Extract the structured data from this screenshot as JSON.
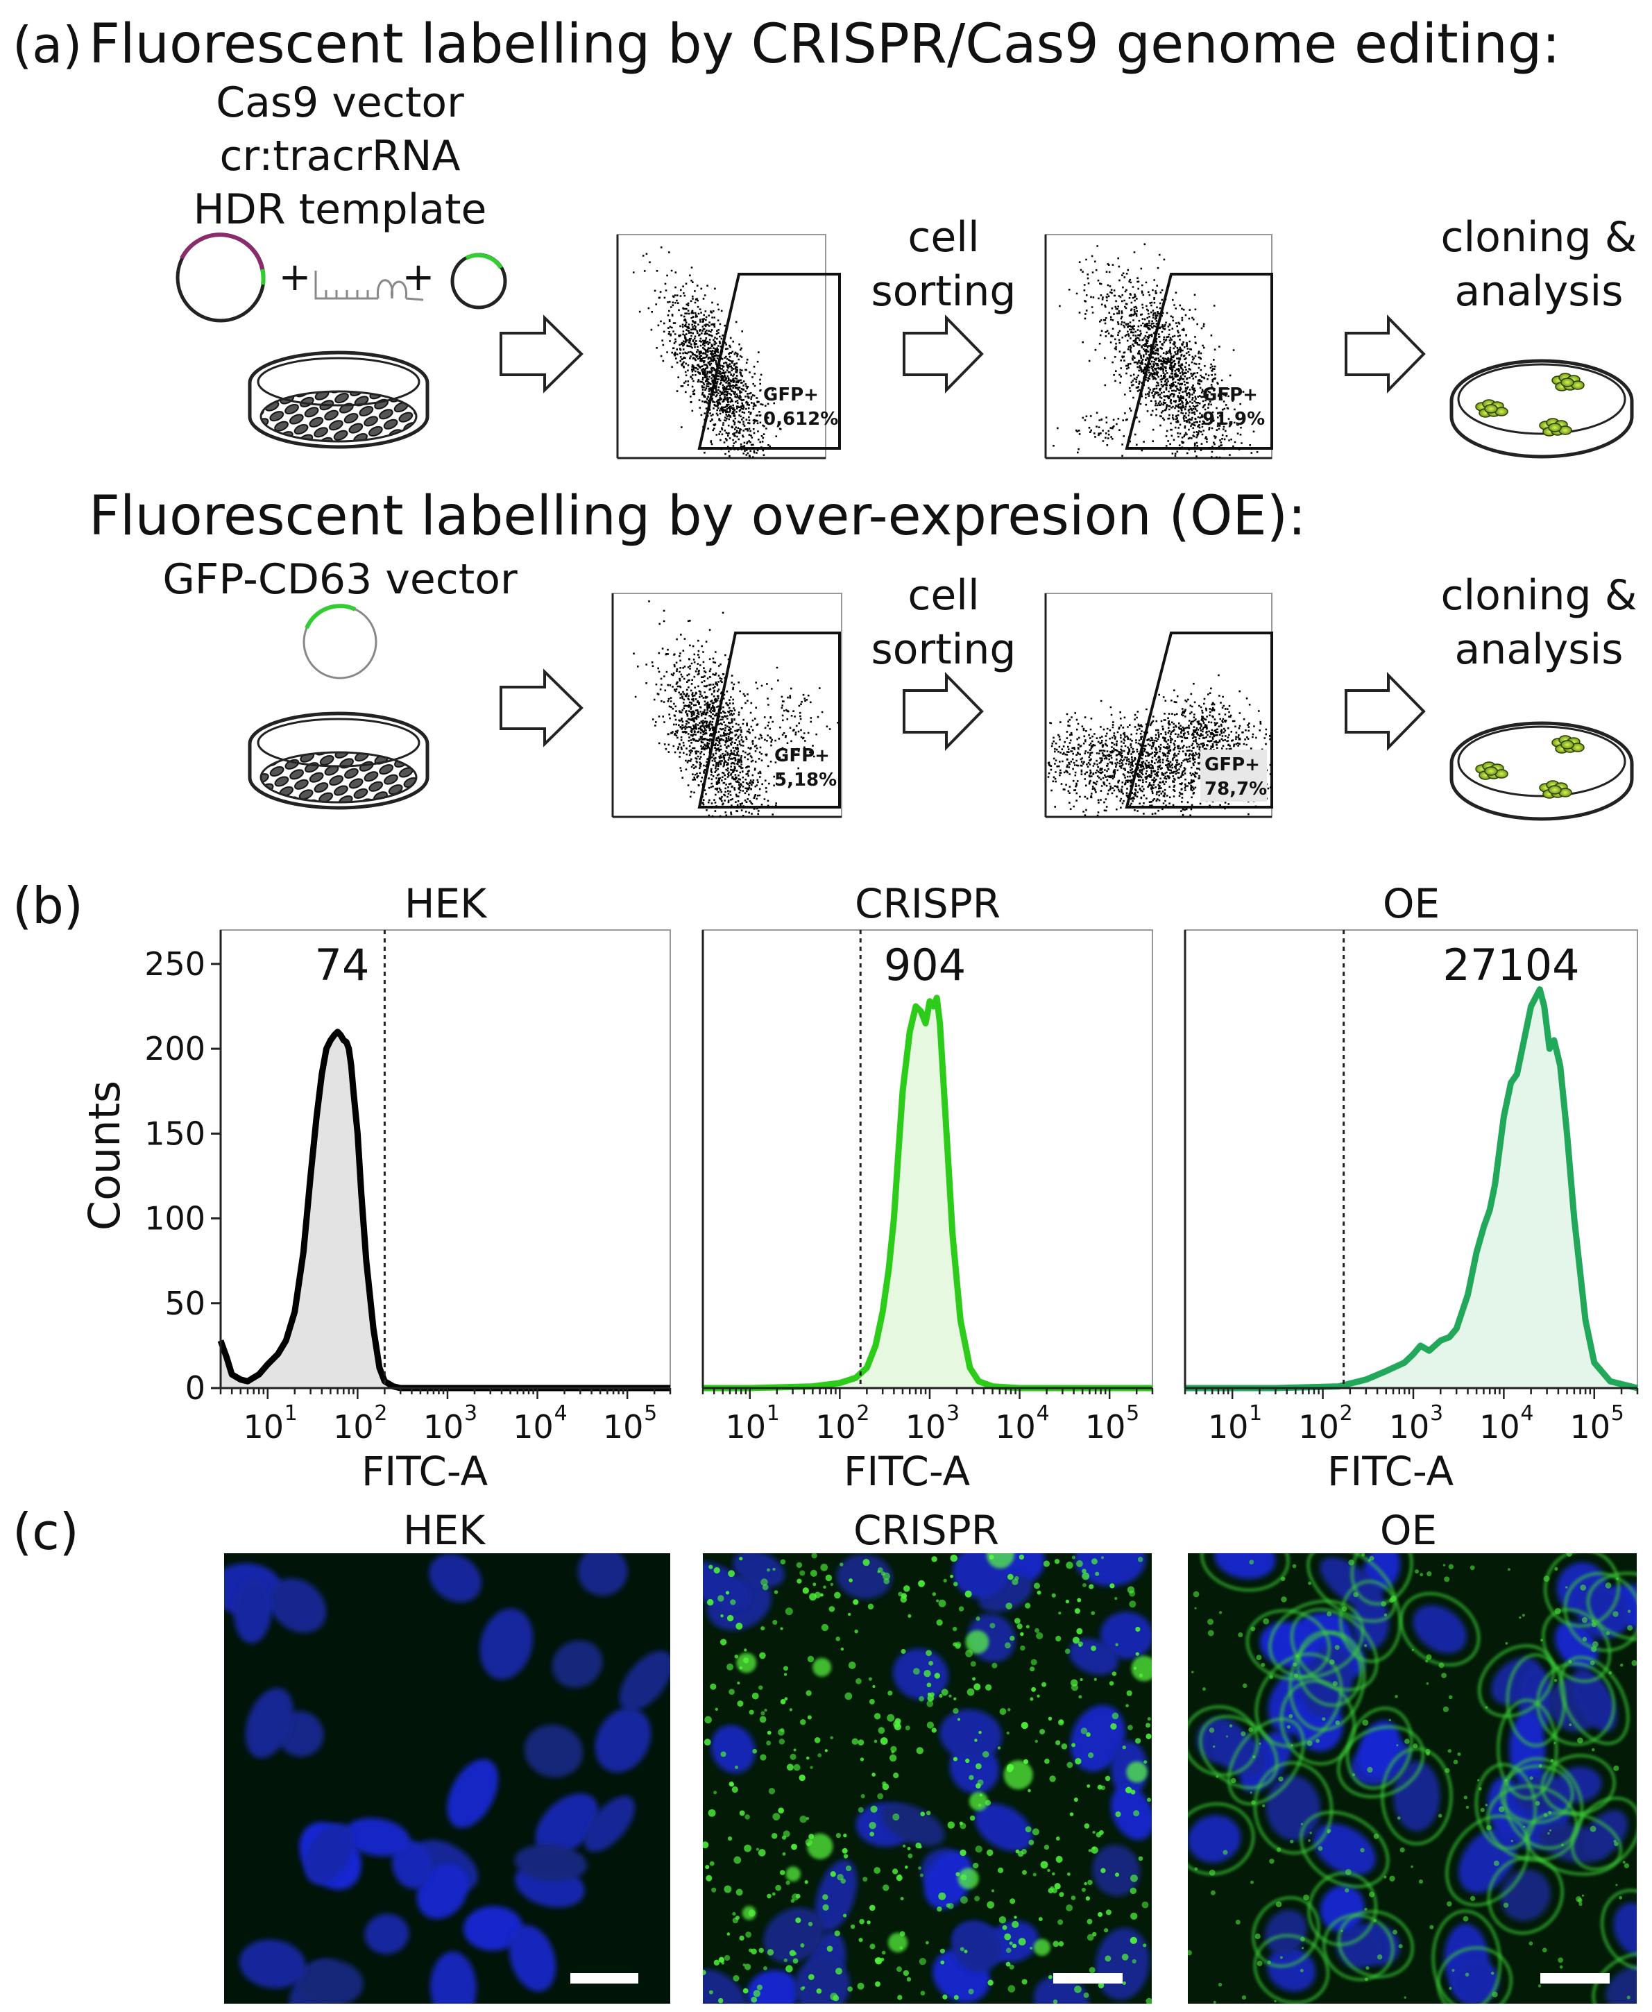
{
  "figure": {
    "panel_a": {
      "label": "(a)",
      "crispr_title": "Fluorescent labelling by CRISPR/Cas9 genome editing:",
      "oe_title": "Fluorescent labelling by over-expresion (OE):",
      "crispr_components": [
        "Cas9 vector",
        "cr:tracrRNA",
        "HDR template"
      ],
      "oe_component": "GFP-CD63 vector",
      "plus": "+",
      "step_sort": [
        "cell",
        "sorting"
      ],
      "step_clone": [
        "cloning &",
        "analysis"
      ],
      "gates": {
        "crispr_before": {
          "label": "GFP+",
          "value": "0,612%"
        },
        "crispr_after": {
          "label": "GFP+",
          "value": "91,9%"
        },
        "oe_before": {
          "label": "GFP+",
          "value": "5,18%"
        },
        "oe_after": {
          "label": "GFP+",
          "value": "78,7%"
        }
      }
    },
    "panel_b": {
      "label": "(b)",
      "ylabel": "Counts",
      "xlabel": "FITC-A",
      "yticks": [
        "0",
        "50",
        "100",
        "150",
        "200",
        "250"
      ],
      "xtick_exponents": [
        "1",
        "2",
        "3",
        "4",
        "5"
      ]
    },
    "panel_c": {
      "label": "(c)",
      "titles": [
        "HEK",
        "CRISPR",
        "OE"
      ]
    }
  },
  "chart_data": [
    {
      "type": "area",
      "title": "HEK",
      "xlabel": "FITC-A",
      "ylabel": "Counts",
      "x_scale": "log",
      "xlim": [
        3,
        300000
      ],
      "ylim": [
        0,
        270
      ],
      "median_label": "74",
      "threshold_x": 200,
      "color": "#000000",
      "fill": "#e3e3e3",
      "x": [
        3,
        3.5,
        4,
        5,
        6,
        8,
        10,
        13,
        16,
        20,
        25,
        30,
        35,
        40,
        45,
        50,
        55,
        60,
        65,
        70,
        75,
        80,
        85,
        90,
        100,
        110,
        125,
        150,
        175,
        200,
        250,
        300,
        500,
        1000,
        10000,
        100000,
        300000
      ],
      "y": [
        28,
        18,
        8,
        5,
        4,
        8,
        14,
        20,
        28,
        45,
        80,
        125,
        160,
        185,
        200,
        205,
        208,
        210,
        208,
        205,
        204,
        200,
        190,
        175,
        150,
        115,
        75,
        35,
        12,
        4,
        1,
        0,
        0,
        0,
        0,
        0,
        0
      ]
    },
    {
      "type": "area",
      "title": "CRISPR",
      "xlabel": "FITC-A",
      "x_scale": "log",
      "xlim": [
        3,
        300000
      ],
      "ylim": [
        0,
        270
      ],
      "median_label": "904",
      "threshold_x": 170,
      "color": "#2ecc1a",
      "fill": "#e6f8e0",
      "x": [
        3,
        10,
        50,
        100,
        150,
        200,
        250,
        300,
        350,
        400,
        450,
        500,
        600,
        700,
        800,
        900,
        1000,
        1100,
        1200,
        1300,
        1500,
        1800,
        2200,
        2800,
        3500,
        5000,
        10000,
        100000,
        300000
      ],
      "y": [
        0,
        0,
        1,
        3,
        6,
        12,
        25,
        45,
        70,
        100,
        140,
        175,
        210,
        225,
        222,
        215,
        228,
        225,
        230,
        215,
        160,
        90,
        40,
        12,
        4,
        1,
        0,
        0,
        0
      ]
    },
    {
      "type": "area",
      "title": "OE",
      "xlabel": "FITC-A",
      "x_scale": "log",
      "xlim": [
        3,
        300000
      ],
      "ylim": [
        0,
        270
      ],
      "median_label": "27104",
      "threshold_x": 170,
      "color": "#22a85a",
      "fill": "#e4f5ea",
      "x": [
        3,
        30,
        150,
        300,
        500,
        800,
        1000,
        1200,
        1500,
        2000,
        2500,
        3000,
        4000,
        5000,
        6000,
        7000,
        8000,
        10000,
        12000,
        14000,
        16000,
        20000,
        25000,
        28000,
        32000,
        36000,
        42000,
        50000,
        60000,
        80000,
        100000,
        150000,
        300000
      ],
      "y": [
        0,
        0,
        1,
        5,
        10,
        15,
        20,
        25,
        22,
        28,
        30,
        35,
        55,
        80,
        95,
        105,
        120,
        160,
        180,
        185,
        200,
        225,
        235,
        225,
        200,
        205,
        190,
        150,
        100,
        40,
        15,
        4,
        0
      ]
    }
  ]
}
